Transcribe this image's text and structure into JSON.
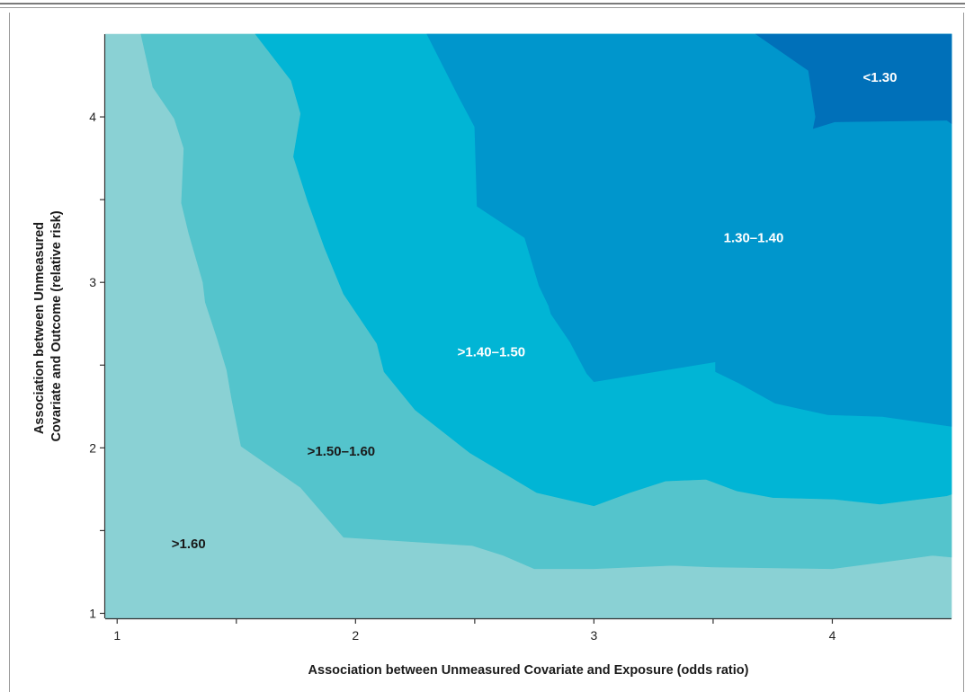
{
  "chart_data": {
    "type": "contour",
    "title": "",
    "xlabel": "Association between Unmeasured Covariate and Exposure (odds ratio)",
    "ylabel_lines": [
      "Association between Unmeasured",
      "Covariate and Outcome (relative risk)"
    ],
    "xlim": [
      0.95,
      4.5
    ],
    "ylim": [
      0.97,
      4.5
    ],
    "x_ticks": [
      1,
      2,
      3,
      4
    ],
    "y_ticks": [
      1,
      2,
      3,
      4
    ],
    "x_minor_ticks": [
      1.5,
      2.5,
      3.5
    ],
    "y_minor_ticks": [
      1.5,
      2.5,
      3.5
    ],
    "grid": false,
    "bands": [
      {
        "label": ">1.60",
        "color": "#8ad1d4",
        "label_color": "#1a1a1a",
        "label_pos": [
          1.3,
          1.42
        ],
        "boundary": [
          [
            0.95,
            4.5
          ]
        ]
      },
      {
        "label": ">1.50–1.60",
        "color": "#54c4cc",
        "label_color": "#1a1a1a",
        "label_pos": [
          1.94,
          1.98
        ],
        "boundary": [
          [
            1.1,
            4.5
          ],
          [
            1.15,
            4.18
          ],
          [
            1.24,
            3.99
          ],
          [
            1.28,
            3.81
          ],
          [
            1.27,
            3.48
          ],
          [
            1.3,
            3.3
          ],
          [
            1.36,
            3.0
          ],
          [
            1.37,
            2.88
          ],
          [
            1.42,
            2.66
          ],
          [
            1.46,
            2.47
          ],
          [
            1.48,
            2.3
          ],
          [
            1.52,
            2.01
          ],
          [
            1.77,
            1.76
          ],
          [
            1.95,
            1.46
          ],
          [
            2.49,
            1.41
          ],
          [
            2.62,
            1.35
          ],
          [
            2.75,
            1.27
          ],
          [
            3.0,
            1.27
          ],
          [
            3.33,
            1.29
          ],
          [
            3.5,
            1.28
          ],
          [
            4.0,
            1.27
          ],
          [
            4.16,
            1.3
          ],
          [
            4.42,
            1.35
          ],
          [
            4.5,
            1.34
          ]
        ]
      },
      {
        "label": ">1.40–1.50",
        "color": "#01b5d5",
        "label_color": "#ffffff",
        "label_pos": [
          2.57,
          2.58
        ],
        "boundary": [
          [
            1.58,
            4.5
          ],
          [
            1.73,
            4.22
          ],
          [
            1.77,
            4.02
          ],
          [
            1.74,
            3.76
          ],
          [
            1.8,
            3.49
          ],
          [
            1.87,
            3.21
          ],
          [
            1.95,
            2.93
          ],
          [
            2.09,
            2.63
          ],
          [
            2.12,
            2.46
          ],
          [
            2.25,
            2.23
          ],
          [
            2.48,
            1.97
          ],
          [
            2.76,
            1.73
          ],
          [
            3.0,
            1.65
          ],
          [
            3.15,
            1.73
          ],
          [
            3.3,
            1.8
          ],
          [
            3.47,
            1.81
          ],
          [
            3.6,
            1.74
          ],
          [
            3.75,
            1.7
          ],
          [
            4.01,
            1.69
          ],
          [
            4.2,
            1.66
          ],
          [
            4.48,
            1.71
          ],
          [
            4.5,
            1.72
          ]
        ]
      },
      {
        "label": "1.30–1.40",
        "color": "#0096cc",
        "label_color": "#ffffff",
        "label_pos": [
          3.67,
          3.27
        ],
        "boundary": [
          [
            2.3,
            4.5
          ],
          [
            2.43,
            4.13
          ],
          [
            2.5,
            3.94
          ],
          [
            2.51,
            3.46
          ],
          [
            2.71,
            3.27
          ],
          [
            2.77,
            2.98
          ],
          [
            2.81,
            2.86
          ],
          [
            2.82,
            2.81
          ],
          [
            2.9,
            2.64
          ],
          [
            2.97,
            2.45
          ],
          [
            3.0,
            2.4
          ],
          [
            3.34,
            2.48
          ],
          [
            3.51,
            2.52
          ],
          [
            3.51,
            2.46
          ],
          [
            3.61,
            2.39
          ],
          [
            3.76,
            2.27
          ],
          [
            3.98,
            2.2
          ],
          [
            4.21,
            2.19
          ],
          [
            4.5,
            2.13
          ]
        ]
      },
      {
        "label": "<1.30",
        "color": "#0070b9",
        "label_color": "#ffffff",
        "label_pos": [
          4.2,
          4.24
        ],
        "boundary": [
          [
            3.68,
            4.5
          ],
          [
            3.78,
            4.4
          ],
          [
            3.9,
            4.28
          ],
          [
            3.93,
            4.0
          ],
          [
            3.92,
            3.93
          ],
          [
            4.01,
            3.97
          ],
          [
            4.48,
            3.98
          ],
          [
            4.5,
            3.96
          ]
        ]
      }
    ]
  }
}
